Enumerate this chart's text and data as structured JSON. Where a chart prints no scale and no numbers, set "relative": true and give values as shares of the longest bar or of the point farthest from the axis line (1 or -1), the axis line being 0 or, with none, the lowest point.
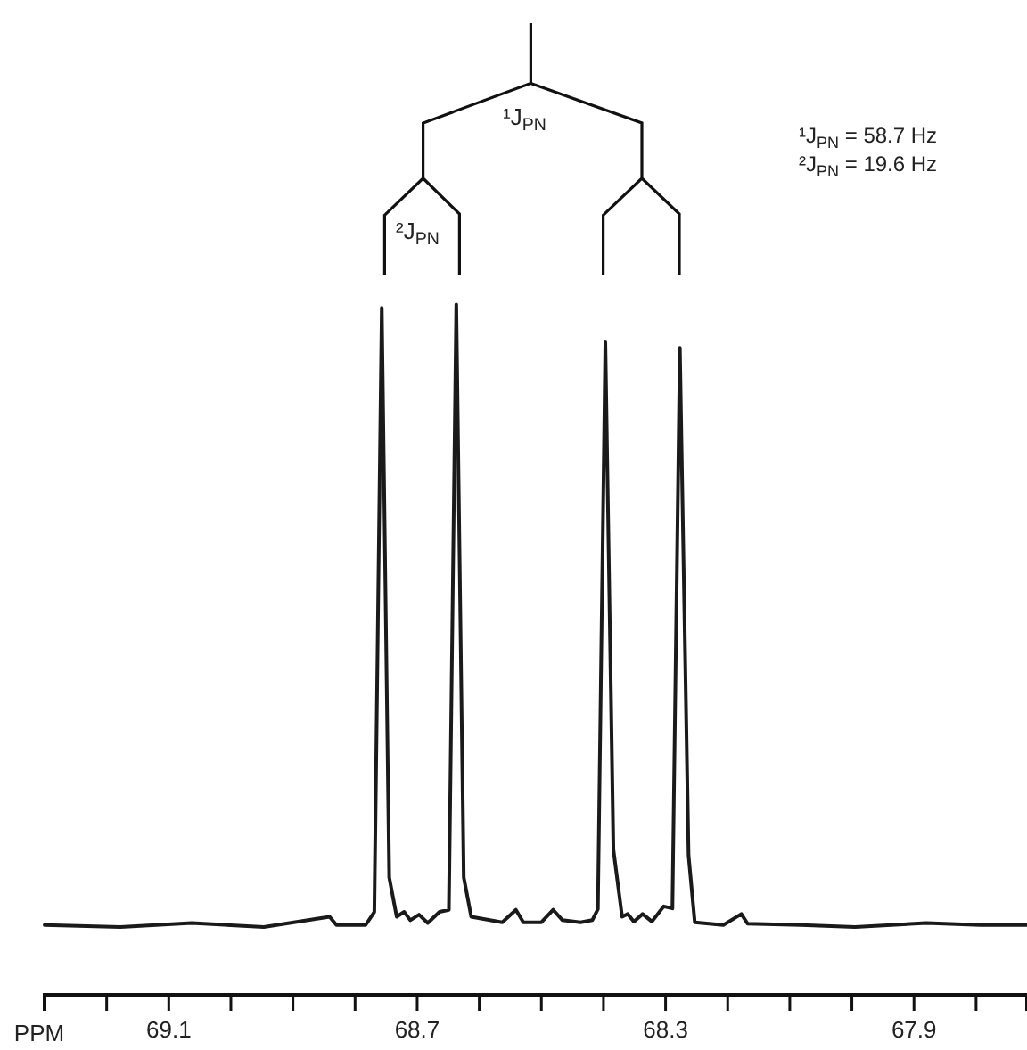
{
  "chart_data": {
    "type": "line",
    "relative": true,
    "xlabel": "PPM",
    "xlim": [
      69.3,
      67.718
    ],
    "xticks": [
      {
        "value": 69.3,
        "label": null
      },
      {
        "value": 69.2,
        "label": null
      },
      69.1,
      {
        "value": 69.0,
        "label": null
      },
      {
        "value": 68.9,
        "label": null
      },
      {
        "value": 68.8,
        "label": null
      },
      68.7,
      {
        "value": 68.6,
        "label": null
      },
      {
        "value": 68.5,
        "label": null
      },
      {
        "value": 68.4,
        "label": null
      },
      68.3,
      {
        "value": 68.2,
        "label": null
      },
      {
        "value": 68.1,
        "label": null
      },
      {
        "value": 68.0,
        "label": null
      },
      67.9,
      {
        "value": 67.8,
        "label": null
      }
    ],
    "annotations": [
      "¹J$_{PN}$",
      "²J$_{PN}$",
      "¹J$_{PN}$ = 58.7 Hz",
      "²J$_{PN}$ = 19.6 Hz"
    ],
    "series": [
      {
        "color": "#1a1a1a",
        "x": [
          69.3,
          69.178,
          69.063,
          68.947,
          68.841,
          68.83,
          68.783,
          68.769,
          68.757,
          68.745,
          68.733,
          68.721,
          68.711,
          68.697,
          68.683,
          68.664,
          68.649,
          68.637,
          68.625,
          68.613,
          68.563,
          68.541,
          68.529,
          68.5,
          68.481,
          68.466,
          68.437,
          68.418,
          68.409,
          68.397,
          68.384,
          68.37,
          68.361,
          68.351,
          68.337,
          68.322,
          68.303,
          68.289,
          68.277,
          68.263,
          68.253,
          68.207,
          68.178,
          68.168,
          68.082,
          67.995,
          67.88,
          67.793,
          67.718
        ],
        "values": [
          0.101,
          0.098,
          0.104,
          0.098,
          0.113,
          0.101,
          0.101,
          0.12,
          0.995,
          0.17,
          0.113,
          0.12,
          0.108,
          0.116,
          0.104,
          0.12,
          0.123,
          1,
          0.17,
          0.113,
          0.105,
          0.123,
          0.105,
          0.105,
          0.123,
          0.108,
          0.105,
          0.108,
          0.124,
          0.945,
          0.21,
          0.113,
          0.117,
          0.106,
          0.117,
          0.106,
          0.128,
          0.125,
          0.937,
          0.202,
          0.105,
          0.101,
          0.117,
          0.103,
          0.101,
          0.098,
          0.104,
          0.101,
          0.101
        ]
      }
    ]
  }
}
